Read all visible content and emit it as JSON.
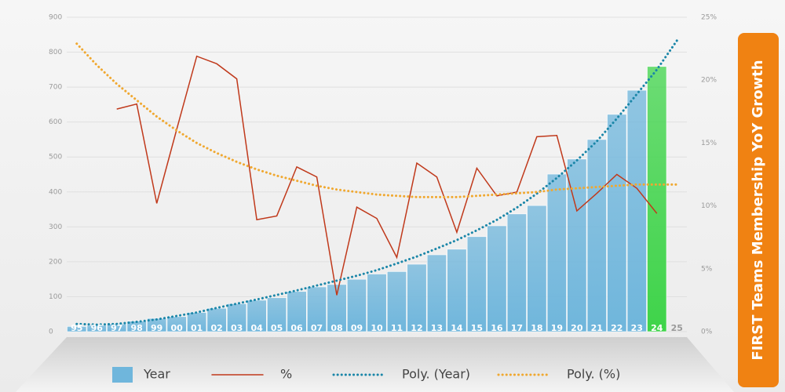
{
  "chart_data": {
    "type": "bar_line",
    "title": "FIRST Teams Membership YoY Growth",
    "categories": [
      "95",
      "96",
      "97",
      "98",
      "99",
      "00",
      "01",
      "02",
      "03",
      "04",
      "05",
      "06",
      "07",
      "08",
      "09",
      "10",
      "11",
      "12",
      "13",
      "14",
      "15",
      "16",
      "17",
      "18",
      "19",
      "20",
      "21",
      "22",
      "23",
      "24",
      "25"
    ],
    "series": [
      {
        "name": "Year",
        "kind": "bar",
        "axis": "y",
        "color": "#6fb6dc",
        "colors": [
          "#6fb6dc",
          "#6fb6dc",
          "#6fb6dc",
          "#6fb6dc",
          "#6fb6dc",
          "#6fb6dc",
          "#6fb6dc",
          "#6fb6dc",
          "#6fb6dc",
          "#6fb6dc",
          "#6fb6dc",
          "#6fb6dc",
          "#6fb6dc",
          "#6fb6dc",
          "#6fb6dc",
          "#6fb6dc",
          "#6fb6dc",
          "#6fb6dc",
          "#6fb6dc",
          "#6fb6dc",
          "#6fb6dc",
          "#6fb6dc",
          "#6fb6dc",
          "#6fb6dc",
          "#6fb6dc",
          "#6fb6dc",
          "#6fb6dc",
          "#6fb6dc",
          "#6fb6dc",
          "#3fd44a",
          "#6fb6dc"
        ],
        "values": [
          15,
          18,
          22,
          30,
          38,
          43,
          55,
          67,
          80,
          90,
          97,
          115,
          128,
          135,
          150,
          165,
          172,
          193,
          220,
          236,
          272,
          303,
          337,
          361,
          451,
          494,
          550,
          622,
          691,
          759,
          null
        ]
      },
      {
        "name": "%",
        "kind": "line",
        "axis": "y2",
        "color": "#c0391b",
        "values": [
          null,
          null,
          17.7,
          18.1,
          10.2,
          16.1,
          21.9,
          21.3,
          20.1,
          8.9,
          9.2,
          13.1,
          12.3,
          2.9,
          9.9,
          9.0,
          5.9,
          13.4,
          12.3,
          7.9,
          13.0,
          10.8,
          11.1,
          15.5,
          15.6,
          9.6,
          11.0,
          12.5,
          11.4,
          9.4,
          null
        ]
      },
      {
        "name": "Poly. (Year)",
        "kind": "dotted",
        "axis": "y",
        "color": "#1a86a8",
        "values": [
          22,
          20,
          22,
          28,
          35,
          45,
          55,
          68,
          80,
          92,
          105,
          118,
          132,
          146,
          160,
          176,
          195,
          215,
          238,
          262,
          290,
          320,
          355,
          395,
          440,
          490,
          545,
          610,
          680,
          750,
          833
        ]
      },
      {
        "name": "Poly. (%)",
        "kind": "dotted",
        "axis": "y2",
        "color": "#f0a830",
        "values": [
          22.9,
          21.2,
          19.7,
          18.4,
          17.1,
          16.0,
          15.0,
          14.2,
          13.5,
          12.9,
          12.4,
          12.0,
          11.6,
          11.3,
          11.1,
          10.9,
          10.8,
          10.7,
          10.7,
          10.7,
          10.8,
          10.9,
          11.0,
          11.1,
          11.3,
          11.4,
          11.5,
          11.6,
          11.7,
          11.7,
          11.7
        ]
      }
    ],
    "ylim": [
      0,
      900
    ],
    "yticks": [
      0,
      100,
      200,
      300,
      400,
      500,
      600,
      700,
      800,
      900
    ],
    "y2lim": [
      0,
      25
    ],
    "y2ticks": [
      {
        "value": 0,
        "label": "0%"
      },
      {
        "value": 5,
        "label": "5%"
      },
      {
        "value": 10,
        "label": "10%"
      },
      {
        "value": 15,
        "label": "15%"
      },
      {
        "value": 20,
        "label": "20%"
      },
      {
        "value": 25,
        "label": "25%"
      }
    ],
    "grid": true,
    "legend": "bottom"
  }
}
